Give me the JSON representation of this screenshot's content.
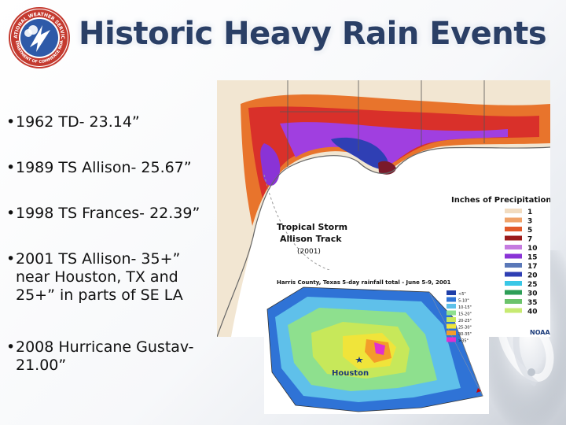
{
  "title": "Historic Heavy Rain Events",
  "logo": {
    "ring_text_top": "NATIONAL WEATHER SERVICE",
    "ring_text_bottom": "DEPARTMENT OF COMMERCE NOAA"
  },
  "bullets": [
    {
      "lines": [
        "1962 TD- 23.14”"
      ]
    },
    {
      "lines": [
        "1989 TS Allison- 25.67”"
      ]
    },
    {
      "lines": [
        "1998 TS Frances- 22.39”"
      ]
    },
    {
      "lines": [
        "2001 TS Allison- 35+”",
        "near Houston, TX and",
        "25+” in parts of SE LA"
      ]
    },
    {
      "lines": [
        "2008 Hurricane Gustav-",
        "21.00”"
      ]
    }
  ],
  "map": {
    "legend_title": "Inches of Precipitation",
    "legend": [
      {
        "label": "1",
        "color": "#f2dcc0"
      },
      {
        "label": "3",
        "color": "#f0a36a"
      },
      {
        "label": "5",
        "color": "#e25a2a"
      },
      {
        "label": "7",
        "color": "#9b1b1b"
      },
      {
        "label": "10",
        "color": "#c57be0"
      },
      {
        "label": "15",
        "color": "#8a33d6"
      },
      {
        "label": "17",
        "color": "#5a78b8"
      },
      {
        "label": "20",
        "color": "#2f3fb4"
      },
      {
        "label": "25",
        "color": "#39c7e6"
      },
      {
        "label": "30",
        "color": "#2d9e57"
      },
      {
        "label": "35",
        "color": "#6bc36b"
      },
      {
        "label": "40",
        "color": "#c7ea72"
      }
    ],
    "track_label_1": "Tropical Storm",
    "track_label_2": "Allison Track",
    "track_year": "(2001)",
    "credit": "NOAA"
  },
  "inset": {
    "title": "Harris County, Texas  5-day rainfall total - June 5-9, 2001",
    "city": "Houston",
    "legend": [
      {
        "label": "<5\"",
        "color": "#1e3ea8"
      },
      {
        "label": "5-10\"",
        "color": "#2f73d6"
      },
      {
        "label": "10-15\"",
        "color": "#5fc0ea"
      },
      {
        "label": "15-20\"",
        "color": "#8ee08e"
      },
      {
        "label": "20-25\"",
        "color": "#c7e85a"
      },
      {
        "label": "25-30\"",
        "color": "#f0e43a"
      },
      {
        "label": "30-35\"",
        "color": "#f39c2a"
      },
      {
        "label": ">35\"",
        "color": "#e02fd0"
      }
    ]
  }
}
